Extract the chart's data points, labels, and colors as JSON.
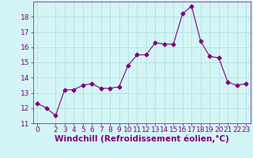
{
  "x": [
    0,
    1,
    2,
    3,
    4,
    5,
    6,
    7,
    8,
    9,
    10,
    11,
    12,
    13,
    14,
    15,
    16,
    17,
    18,
    19,
    20,
    21,
    22,
    23
  ],
  "y": [
    12.3,
    12.0,
    11.5,
    13.2,
    13.2,
    13.5,
    13.6,
    13.3,
    13.3,
    13.4,
    14.8,
    15.5,
    15.5,
    16.3,
    16.2,
    16.2,
    18.2,
    18.7,
    16.4,
    15.4,
    15.3,
    13.7,
    13.5,
    13.6
  ],
  "line_color": "#800080",
  "marker": "D",
  "marker_size": 2.5,
  "bg_color": "#d4f5f5",
  "grid_color": "#aadddd",
  "xlabel": "Windchill (Refroidissement éolien,°C)",
  "xlabel_color": "#800080",
  "tick_color": "#800080",
  "ylim": [
    11,
    19
  ],
  "yticks": [
    11,
    12,
    13,
    14,
    15,
    16,
    17,
    18
  ],
  "xticks": [
    0,
    2,
    3,
    4,
    5,
    6,
    7,
    8,
    9,
    10,
    11,
    12,
    13,
    14,
    15,
    16,
    17,
    18,
    19,
    20,
    21,
    22,
    23
  ],
  "tick_fontsize": 6.5,
  "xlabel_fontsize": 7.5
}
